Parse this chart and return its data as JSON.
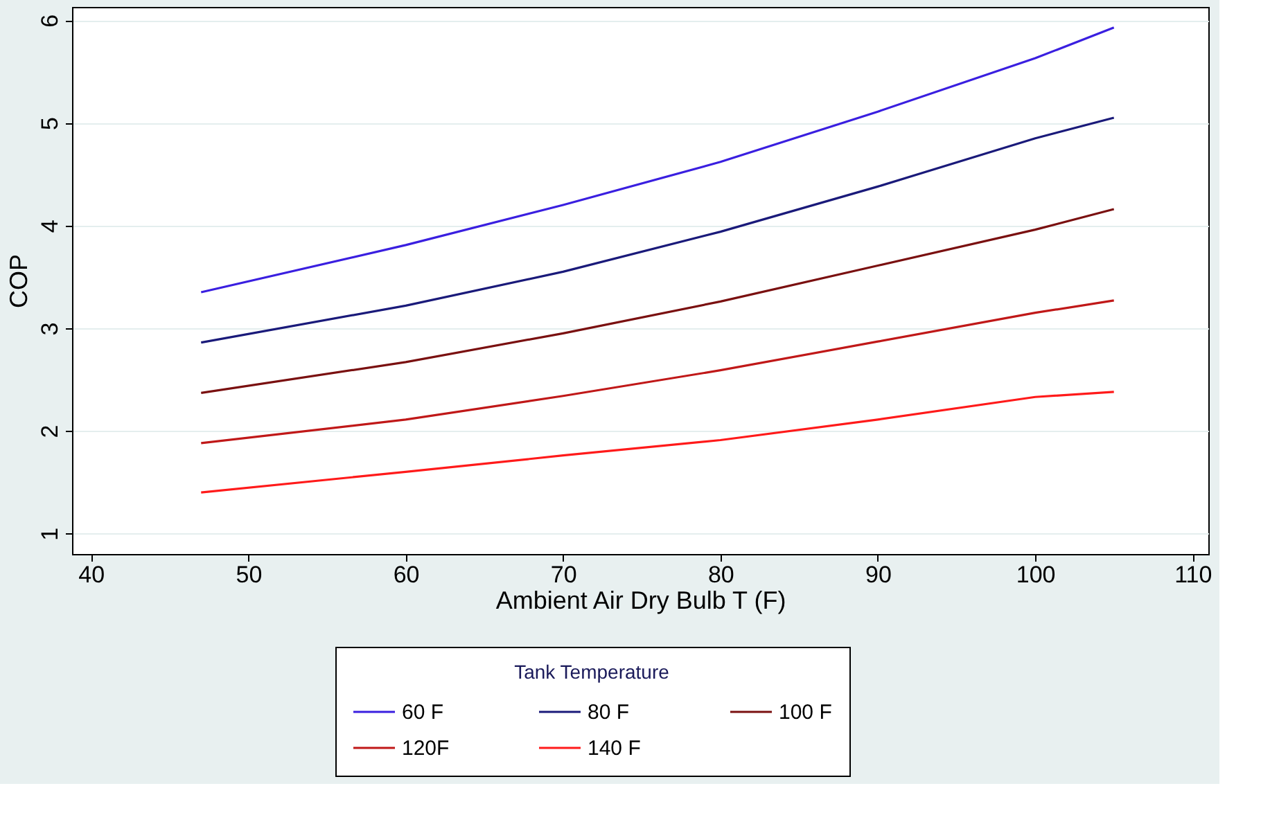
{
  "chart_data": {
    "type": "line",
    "xlabel": "Ambient Air Dry Bulb T (F)",
    "ylabel": "COP",
    "legend_title": "Tank Temperature",
    "x": [
      47,
      60,
      70,
      80,
      90,
      100,
      105
    ],
    "series": [
      {
        "name": "60 F",
        "color": "#3a1fe0",
        "values": [
          3.35,
          3.81,
          4.2,
          4.62,
          5.11,
          5.63,
          5.93
        ]
      },
      {
        "name": "80 F",
        "color": "#1a1a7a",
        "values": [
          2.86,
          3.22,
          3.55,
          3.94,
          4.38,
          4.85,
          5.05
        ]
      },
      {
        "name": "100 F",
        "color": "#7a1010",
        "values": [
          2.37,
          2.67,
          2.95,
          3.26,
          3.61,
          3.96,
          4.16
        ]
      },
      {
        "name": "120F",
        "color": "#c01818",
        "values": [
          1.88,
          2.11,
          2.34,
          2.59,
          2.87,
          3.15,
          3.27
        ]
      },
      {
        "name": "140 F",
        "color": "#ff1a1a",
        "values": [
          1.4,
          1.6,
          1.76,
          1.91,
          2.11,
          2.33,
          2.38
        ]
      }
    ],
    "xlim": [
      38.8,
      111
    ],
    "xticks": [
      40,
      50,
      60,
      70,
      80,
      90,
      100,
      110
    ],
    "ylim": [
      0.8,
      6.13
    ],
    "yticks": [
      1,
      2,
      3,
      4,
      5,
      6
    ],
    "grid": "y",
    "legend": "bottom",
    "marker": "none",
    "line_style": "solid"
  }
}
